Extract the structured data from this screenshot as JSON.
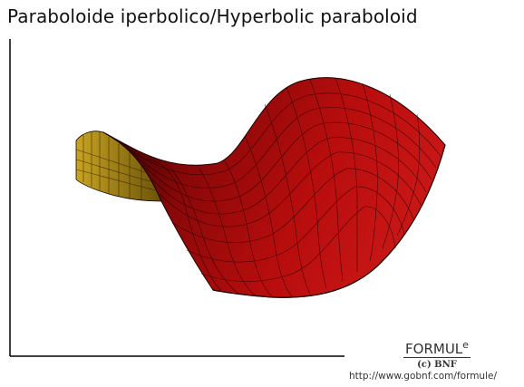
{
  "title": "Paraboloide iperbolico/Hyperbolic paraboloid",
  "logo": {
    "main": "FORMUL",
    "superscript": "e",
    "subtitle": "(c) BNF"
  },
  "url": "http://www.gobnf.com/formule/",
  "colors": {
    "surface_front": "#b80d0d",
    "surface_back": "#c9a422",
    "mesh_lines": "#1a0000",
    "axes": "#000000",
    "background": "#ffffff"
  }
}
